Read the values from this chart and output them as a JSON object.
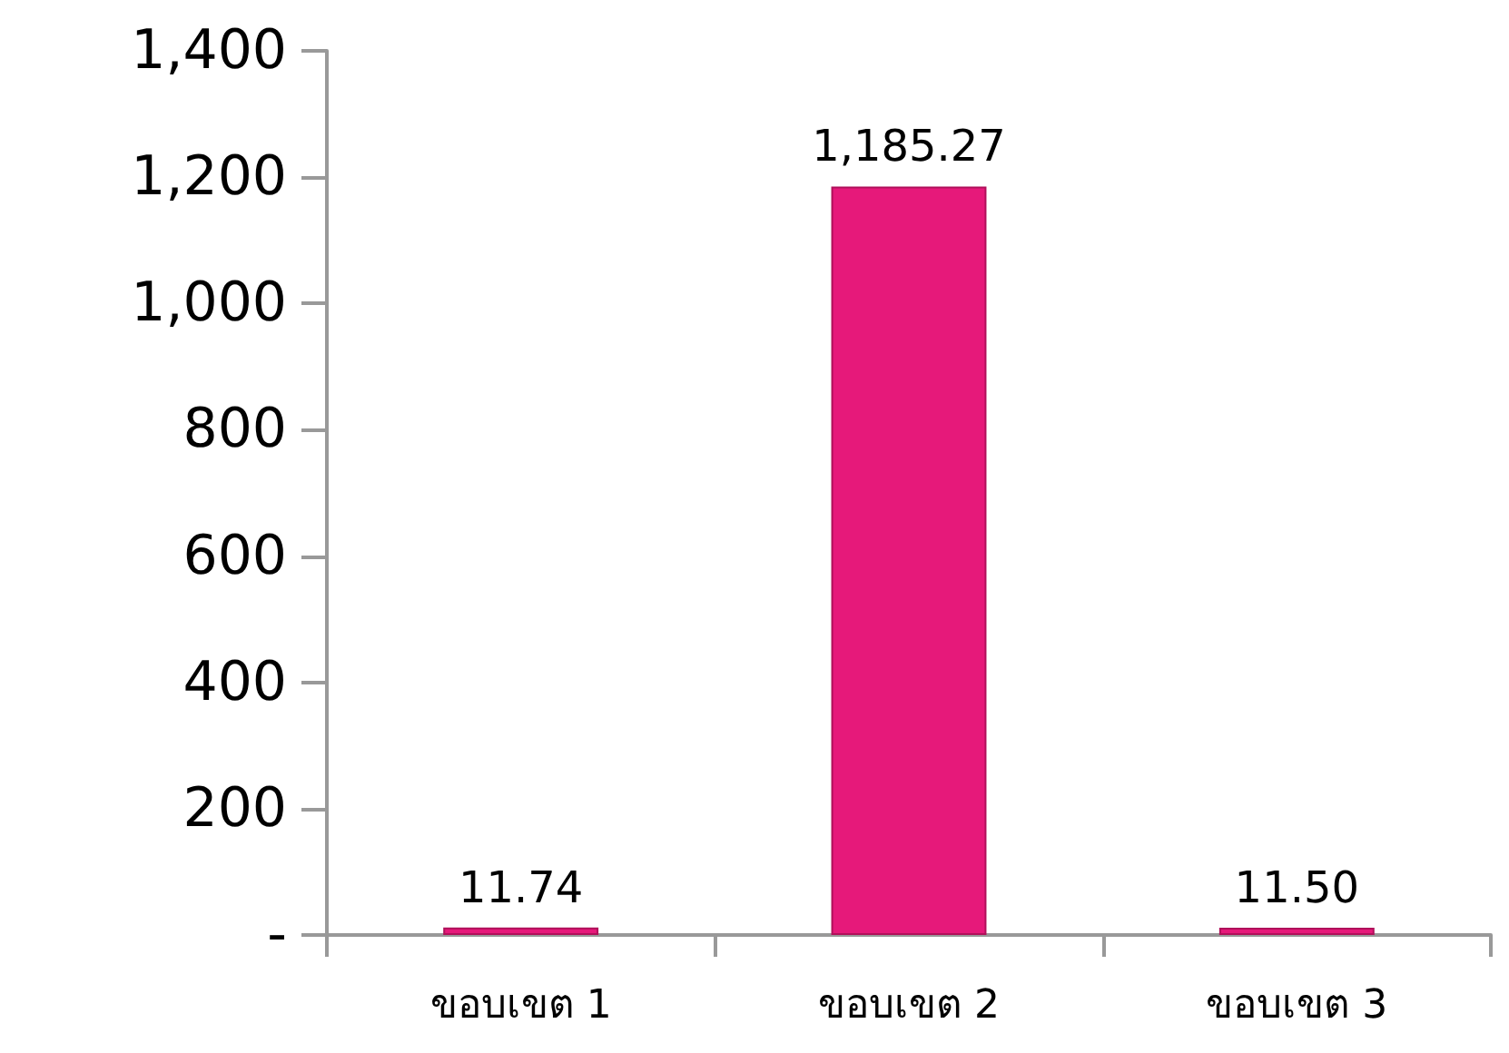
{
  "chart_data": {
    "type": "bar",
    "categories": [
      "ขอบเขต 1",
      "ขอบเขต 2",
      "ขอบเขต 3"
    ],
    "values": [
      11.74,
      1185.27,
      11.5
    ],
    "color": "#e6197a",
    "value_labels": [
      "11.74",
      "1,185.27",
      "11.50"
    ],
    "ylim": [
      0,
      1400
    ],
    "yticks": [
      {
        "value": 0,
        "label": "-"
      },
      {
        "value": 200,
        "label": "200"
      },
      {
        "value": 400,
        "label": "400"
      },
      {
        "value": 600,
        "label": "600"
      },
      {
        "value": 800,
        "label": "800"
      },
      {
        "value": 1000,
        "label": "1,000"
      },
      {
        "value": 1200,
        "label": "1,200"
      },
      {
        "value": 1400,
        "label": "1,400"
      }
    ],
    "grid": false
  }
}
